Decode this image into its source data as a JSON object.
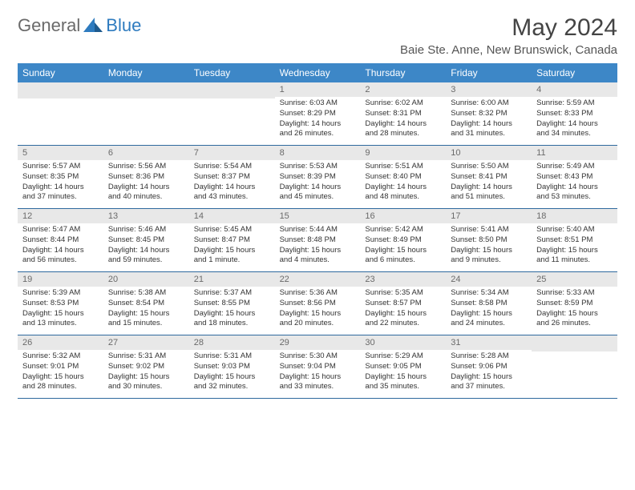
{
  "logo": {
    "part1": "General",
    "part2": "Blue"
  },
  "title": "May 2024",
  "location": "Baie Ste. Anne, New Brunswick, Canada",
  "weekdays": [
    "Sunday",
    "Monday",
    "Tuesday",
    "Wednesday",
    "Thursday",
    "Friday",
    "Saturday"
  ],
  "colors": {
    "header_bg": "#3d87c7",
    "header_fg": "#ffffff",
    "daynum_bg": "#e8e8e8",
    "daynum_fg": "#6a6a6a",
    "rule": "#2f6a9e",
    "logo_accent": "#2e7bbf"
  },
  "weeks": [
    [
      {
        "n": "",
        "empty": true
      },
      {
        "n": "",
        "empty": true
      },
      {
        "n": "",
        "empty": true
      },
      {
        "n": "1",
        "sunrise": "Sunrise: 6:03 AM",
        "sunset": "Sunset: 8:29 PM",
        "daylight": "Daylight: 14 hours and 26 minutes."
      },
      {
        "n": "2",
        "sunrise": "Sunrise: 6:02 AM",
        "sunset": "Sunset: 8:31 PM",
        "daylight": "Daylight: 14 hours and 28 minutes."
      },
      {
        "n": "3",
        "sunrise": "Sunrise: 6:00 AM",
        "sunset": "Sunset: 8:32 PM",
        "daylight": "Daylight: 14 hours and 31 minutes."
      },
      {
        "n": "4",
        "sunrise": "Sunrise: 5:59 AM",
        "sunset": "Sunset: 8:33 PM",
        "daylight": "Daylight: 14 hours and 34 minutes."
      }
    ],
    [
      {
        "n": "5",
        "sunrise": "Sunrise: 5:57 AM",
        "sunset": "Sunset: 8:35 PM",
        "daylight": "Daylight: 14 hours and 37 minutes."
      },
      {
        "n": "6",
        "sunrise": "Sunrise: 5:56 AM",
        "sunset": "Sunset: 8:36 PM",
        "daylight": "Daylight: 14 hours and 40 minutes."
      },
      {
        "n": "7",
        "sunrise": "Sunrise: 5:54 AM",
        "sunset": "Sunset: 8:37 PM",
        "daylight": "Daylight: 14 hours and 43 minutes."
      },
      {
        "n": "8",
        "sunrise": "Sunrise: 5:53 AM",
        "sunset": "Sunset: 8:39 PM",
        "daylight": "Daylight: 14 hours and 45 minutes."
      },
      {
        "n": "9",
        "sunrise": "Sunrise: 5:51 AM",
        "sunset": "Sunset: 8:40 PM",
        "daylight": "Daylight: 14 hours and 48 minutes."
      },
      {
        "n": "10",
        "sunrise": "Sunrise: 5:50 AM",
        "sunset": "Sunset: 8:41 PM",
        "daylight": "Daylight: 14 hours and 51 minutes."
      },
      {
        "n": "11",
        "sunrise": "Sunrise: 5:49 AM",
        "sunset": "Sunset: 8:43 PM",
        "daylight": "Daylight: 14 hours and 53 minutes."
      }
    ],
    [
      {
        "n": "12",
        "sunrise": "Sunrise: 5:47 AM",
        "sunset": "Sunset: 8:44 PM",
        "daylight": "Daylight: 14 hours and 56 minutes."
      },
      {
        "n": "13",
        "sunrise": "Sunrise: 5:46 AM",
        "sunset": "Sunset: 8:45 PM",
        "daylight": "Daylight: 14 hours and 59 minutes."
      },
      {
        "n": "14",
        "sunrise": "Sunrise: 5:45 AM",
        "sunset": "Sunset: 8:47 PM",
        "daylight": "Daylight: 15 hours and 1 minute."
      },
      {
        "n": "15",
        "sunrise": "Sunrise: 5:44 AM",
        "sunset": "Sunset: 8:48 PM",
        "daylight": "Daylight: 15 hours and 4 minutes."
      },
      {
        "n": "16",
        "sunrise": "Sunrise: 5:42 AM",
        "sunset": "Sunset: 8:49 PM",
        "daylight": "Daylight: 15 hours and 6 minutes."
      },
      {
        "n": "17",
        "sunrise": "Sunrise: 5:41 AM",
        "sunset": "Sunset: 8:50 PM",
        "daylight": "Daylight: 15 hours and 9 minutes."
      },
      {
        "n": "18",
        "sunrise": "Sunrise: 5:40 AM",
        "sunset": "Sunset: 8:51 PM",
        "daylight": "Daylight: 15 hours and 11 minutes."
      }
    ],
    [
      {
        "n": "19",
        "sunrise": "Sunrise: 5:39 AM",
        "sunset": "Sunset: 8:53 PM",
        "daylight": "Daylight: 15 hours and 13 minutes."
      },
      {
        "n": "20",
        "sunrise": "Sunrise: 5:38 AM",
        "sunset": "Sunset: 8:54 PM",
        "daylight": "Daylight: 15 hours and 15 minutes."
      },
      {
        "n": "21",
        "sunrise": "Sunrise: 5:37 AM",
        "sunset": "Sunset: 8:55 PM",
        "daylight": "Daylight: 15 hours and 18 minutes."
      },
      {
        "n": "22",
        "sunrise": "Sunrise: 5:36 AM",
        "sunset": "Sunset: 8:56 PM",
        "daylight": "Daylight: 15 hours and 20 minutes."
      },
      {
        "n": "23",
        "sunrise": "Sunrise: 5:35 AM",
        "sunset": "Sunset: 8:57 PM",
        "daylight": "Daylight: 15 hours and 22 minutes."
      },
      {
        "n": "24",
        "sunrise": "Sunrise: 5:34 AM",
        "sunset": "Sunset: 8:58 PM",
        "daylight": "Daylight: 15 hours and 24 minutes."
      },
      {
        "n": "25",
        "sunrise": "Sunrise: 5:33 AM",
        "sunset": "Sunset: 8:59 PM",
        "daylight": "Daylight: 15 hours and 26 minutes."
      }
    ],
    [
      {
        "n": "26",
        "sunrise": "Sunrise: 5:32 AM",
        "sunset": "Sunset: 9:01 PM",
        "daylight": "Daylight: 15 hours and 28 minutes."
      },
      {
        "n": "27",
        "sunrise": "Sunrise: 5:31 AM",
        "sunset": "Sunset: 9:02 PM",
        "daylight": "Daylight: 15 hours and 30 minutes."
      },
      {
        "n": "28",
        "sunrise": "Sunrise: 5:31 AM",
        "sunset": "Sunset: 9:03 PM",
        "daylight": "Daylight: 15 hours and 32 minutes."
      },
      {
        "n": "29",
        "sunrise": "Sunrise: 5:30 AM",
        "sunset": "Sunset: 9:04 PM",
        "daylight": "Daylight: 15 hours and 33 minutes."
      },
      {
        "n": "30",
        "sunrise": "Sunrise: 5:29 AM",
        "sunset": "Sunset: 9:05 PM",
        "daylight": "Daylight: 15 hours and 35 minutes."
      },
      {
        "n": "31",
        "sunrise": "Sunrise: 5:28 AM",
        "sunset": "Sunset: 9:06 PM",
        "daylight": "Daylight: 15 hours and 37 minutes."
      },
      {
        "n": "",
        "empty": true
      }
    ]
  ]
}
